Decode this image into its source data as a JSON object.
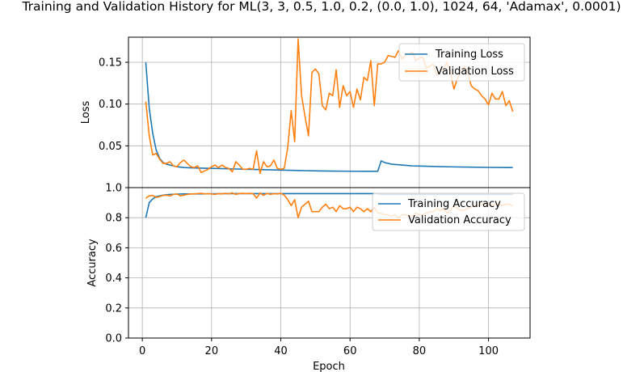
{
  "chart_data": {
    "title": "Training and Validation History for ML(3, 3, 0.5, 1.0, 0.2, (0.0, 1.0), 1024, 64, 'Adamax', 0.0001)",
    "xlabel": "Epoch",
    "xlim": [
      -4,
      112
    ],
    "xticks": [
      0,
      20,
      40,
      60,
      80,
      100
    ],
    "colors": {
      "training": "#1f77b4",
      "validation": "#ff7f0e"
    },
    "subplots": [
      {
        "type": "line",
        "ylabel": "Loss",
        "ylim": [
          0.0,
          0.18
        ],
        "yticks": [
          0.05,
          0.1,
          0.15
        ],
        "ytick_labels": [
          "0.05",
          "0.10",
          "0.15"
        ],
        "grid": true,
        "legend_position": "upper-right",
        "series": [
          {
            "name": "Training Loss",
            "color": "#1f77b4",
            "x": [
              1,
              2,
              3,
              4,
              5,
              6,
              7,
              8,
              9,
              10,
              12,
              15,
              20,
              25,
              30,
              35,
              40,
              45,
              50,
              55,
              60,
              62,
              64,
              65,
              66,
              67,
              68,
              69,
              70,
              72,
              75,
              78,
              80,
              85,
              90,
              95,
              100,
              105,
              107
            ],
            "y": [
              0.15,
              0.095,
              0.065,
              0.045,
              0.035,
              0.03,
              0.028,
              0.027,
              0.026,
              0.025,
              0.024,
              0.0235,
              0.023,
              0.0225,
              0.022,
              0.0215,
              0.021,
              0.0205,
              0.02,
              0.0198,
              0.0196,
              0.0196,
              0.0195,
              0.0195,
              0.0195,
              0.0195,
              0.0195,
              0.032,
              0.03,
              0.028,
              0.027,
              0.026,
              0.0258,
              0.0252,
              0.0248,
              0.0245,
              0.0242,
              0.024,
              0.024
            ]
          },
          {
            "name": "Validation Loss",
            "color": "#ff7f0e",
            "x": [
              1,
              2,
              3,
              4,
              5,
              6,
              7,
              8,
              9,
              10,
              11,
              12,
              13,
              14,
              15,
              16,
              17,
              18,
              19,
              20,
              21,
              22,
              23,
              24,
              25,
              26,
              27,
              28,
              29,
              30,
              31,
              32,
              33,
              34,
              35,
              36,
              37,
              38,
              39,
              40,
              41,
              42,
              43,
              44,
              45,
              46,
              47,
              48,
              49,
              50,
              51,
              52,
              53,
              54,
              55,
              56,
              57,
              58,
              59,
              60,
              61,
              62,
              63,
              64,
              65,
              66,
              67,
              68,
              69,
              70,
              71,
              72,
              73,
              74,
              75,
              76,
              77,
              78,
              79,
              80,
              81,
              82,
              83,
              84,
              85,
              86,
              87,
              88,
              89,
              90,
              91,
              92,
              93,
              94,
              95,
              96,
              97,
              98,
              99,
              100,
              101,
              102,
              103,
              104,
              105,
              106,
              107
            ],
            "y": [
              0.103,
              0.062,
              0.039,
              0.041,
              0.034,
              0.029,
              0.029,
              0.031,
              0.026,
              0.025,
              0.03,
              0.033,
              0.029,
              0.025,
              0.024,
              0.026,
              0.018,
              0.02,
              0.022,
              0.025,
              0.027,
              0.024,
              0.027,
              0.024,
              0.023,
              0.019,
              0.031,
              0.027,
              0.022,
              0.022,
              0.023,
              0.022,
              0.044,
              0.017,
              0.031,
              0.025,
              0.026,
              0.033,
              0.023,
              0.022,
              0.023,
              0.048,
              0.092,
              0.055,
              0.178,
              0.11,
              0.085,
              0.062,
              0.138,
              0.142,
              0.136,
              0.098,
              0.093,
              0.113,
              0.11,
              0.141,
              0.096,
              0.122,
              0.11,
              0.115,
              0.096,
              0.118,
              0.105,
              0.132,
              0.128,
              0.152,
              0.098,
              0.148,
              0.148,
              0.15,
              0.158,
              0.157,
              0.156,
              0.164,
              0.154,
              0.158,
              0.16,
              0.162,
              0.152,
              0.155,
              0.156,
              0.143,
              0.145,
              0.148,
              0.135,
              0.14,
              0.142,
              0.15,
              0.138,
              0.118,
              0.13,
              0.14,
              0.145,
              0.137,
              0.122,
              0.118,
              0.116,
              0.11,
              0.106,
              0.099,
              0.113,
              0.106,
              0.106,
              0.115,
              0.098,
              0.104,
              0.091
            ]
          }
        ]
      },
      {
        "type": "line",
        "ylabel": "Accuracy",
        "ylim": [
          0.0,
          1.0
        ],
        "yticks": [
          0.0,
          0.2,
          0.4,
          0.6,
          0.8,
          1.0
        ],
        "ytick_labels": [
          "0.0",
          "0.2",
          "0.4",
          "0.6",
          "0.8",
          "1.0"
        ],
        "grid": true,
        "legend_position": "upper-right",
        "series": [
          {
            "name": "Training Accuracy",
            "color": "#1f77b4",
            "x": [
              1,
              2,
              3,
              4,
              5,
              6,
              7,
              8,
              10,
              12,
              15,
              20,
              25,
              30,
              35,
              40,
              45,
              50,
              55,
              60,
              65,
              68,
              69,
              70,
              75,
              80,
              85,
              90,
              95,
              100,
              105,
              107
            ],
            "y": [
              0.8,
              0.9,
              0.925,
              0.94,
              0.945,
              0.95,
              0.953,
              0.955,
              0.957,
              0.958,
              0.958,
              0.959,
              0.96,
              0.96,
              0.96,
              0.96,
              0.96,
              0.96,
              0.96,
              0.96,
              0.96,
              0.96,
              0.955,
              0.955,
              0.955,
              0.955,
              0.955,
              0.955,
              0.955,
              0.955,
              0.955,
              0.955
            ]
          },
          {
            "name": "Validation Accuracy",
            "color": "#ff7f0e",
            "x": [
              1,
              2,
              3,
              4,
              5,
              6,
              7,
              8,
              9,
              10,
              11,
              12,
              13,
              14,
              15,
              16,
              17,
              18,
              19,
              20,
              21,
              22,
              23,
              24,
              25,
              26,
              27,
              28,
              29,
              30,
              31,
              32,
              33,
              34,
              35,
              36,
              37,
              38,
              39,
              40,
              41,
              42,
              43,
              44,
              45,
              46,
              47,
              48,
              49,
              50,
              51,
              52,
              53,
              54,
              55,
              56,
              57,
              58,
              59,
              60,
              61,
              62,
              63,
              64,
              65,
              66,
              67,
              68,
              69,
              70,
              71,
              72,
              73,
              74,
              75,
              76,
              77,
              78,
              79,
              80,
              81,
              82,
              83,
              84,
              85,
              86,
              87,
              88,
              89,
              90,
              91,
              92,
              93,
              94,
              95,
              96,
              97,
              98,
              99,
              100,
              101,
              102,
              103,
              104,
              105,
              106,
              107
            ],
            "y": [
              0.93,
              0.945,
              0.948,
              0.935,
              0.94,
              0.948,
              0.95,
              0.945,
              0.955,
              0.958,
              0.945,
              0.95,
              0.955,
              0.958,
              0.958,
              0.96,
              0.962,
              0.958,
              0.96,
              0.958,
              0.955,
              0.96,
              0.958,
              0.962,
              0.958,
              0.965,
              0.955,
              0.96,
              0.962,
              0.96,
              0.962,
              0.96,
              0.93,
              0.965,
              0.948,
              0.962,
              0.955,
              0.96,
              0.958,
              0.962,
              0.95,
              0.92,
              0.88,
              0.92,
              0.8,
              0.87,
              0.89,
              0.91,
              0.84,
              0.84,
              0.84,
              0.87,
              0.89,
              0.86,
              0.87,
              0.84,
              0.88,
              0.86,
              0.86,
              0.87,
              0.84,
              0.87,
              0.86,
              0.84,
              0.86,
              0.84,
              0.87,
              0.83,
              0.83,
              0.82,
              0.82,
              0.81,
              0.82,
              0.8,
              0.82,
              0.82,
              0.81,
              0.81,
              0.83,
              0.82,
              0.82,
              0.83,
              0.84,
              0.84,
              0.86,
              0.85,
              0.86,
              0.83,
              0.85,
              0.88,
              0.86,
              0.85,
              0.85,
              0.86,
              0.87,
              0.88,
              0.88,
              0.89,
              0.89,
              0.89,
              0.88,
              0.89,
              0.89,
              0.88,
              0.89,
              0.89,
              0.88
            ]
          }
        ]
      }
    ]
  }
}
